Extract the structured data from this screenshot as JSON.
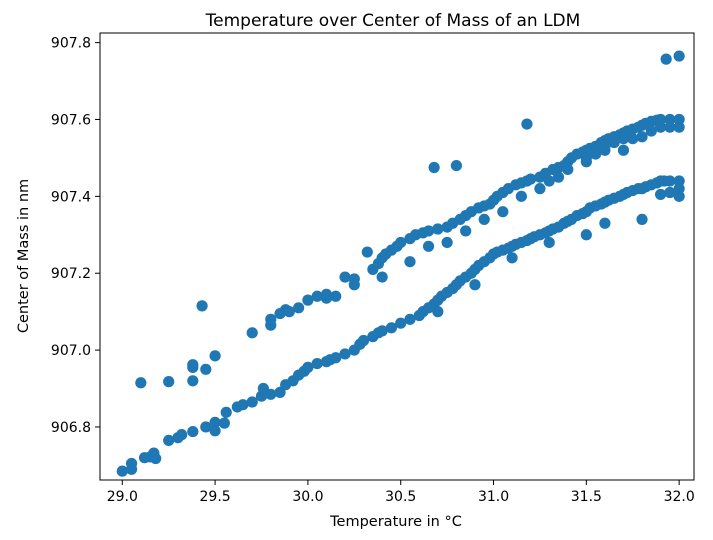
{
  "chart_data": {
    "type": "scatter",
    "title": "Temperature over Center of Mass of an LDM",
    "xlabel": "Temperature in °C",
    "ylabel": "Center of Mass in nm",
    "xlim": [
      28.88,
      32.08
    ],
    "ylim": [
      906.662,
      907.825
    ],
    "xticks": [
      29.0,
      29.5,
      30.0,
      30.5,
      31.0,
      31.5,
      32.0
    ],
    "xtick_labels": [
      "29.0",
      "29.5",
      "30.0",
      "30.5",
      "31.0",
      "31.5",
      "32.0"
    ],
    "yticks": [
      906.8,
      907.0,
      907.2,
      907.4,
      907.6,
      907.8
    ],
    "ytick_labels": [
      "906.8",
      "907.0",
      "907.2",
      "907.4",
      "907.6",
      "907.8"
    ],
    "grid": false,
    "color": "#1f77b4",
    "series": [
      {
        "points": [
          [
            29.0,
            906.685
          ],
          [
            29.05,
            906.69
          ],
          [
            29.05,
            906.705
          ],
          [
            29.12,
            906.72
          ],
          [
            29.15,
            906.722
          ],
          [
            29.17,
            906.732
          ],
          [
            29.18,
            906.718
          ],
          [
            29.25,
            906.765
          ],
          [
            29.3,
            906.772
          ],
          [
            29.32,
            906.78
          ],
          [
            29.38,
            906.788
          ],
          [
            29.45,
            906.8
          ],
          [
            29.5,
            906.79
          ],
          [
            29.5,
            906.812
          ],
          [
            29.55,
            906.81
          ],
          [
            29.56,
            906.838
          ],
          [
            29.62,
            906.852
          ],
          [
            29.65,
            906.858
          ],
          [
            29.7,
            906.865
          ],
          [
            29.75,
            906.88
          ],
          [
            29.76,
            906.9
          ],
          [
            29.8,
            906.885
          ],
          [
            29.85,
            906.89
          ],
          [
            29.88,
            906.91
          ],
          [
            29.92,
            906.92
          ],
          [
            29.95,
            906.935
          ],
          [
            29.98,
            906.945
          ],
          [
            30.0,
            906.955
          ],
          [
            30.05,
            906.965
          ],
          [
            30.1,
            906.97
          ],
          [
            30.12,
            906.975
          ],
          [
            30.15,
            906.98
          ],
          [
            30.2,
            906.99
          ],
          [
            30.25,
            907.0
          ],
          [
            30.28,
            907.015
          ],
          [
            30.3,
            907.025
          ],
          [
            30.35,
            907.035
          ],
          [
            30.38,
            907.045
          ],
          [
            30.4,
            907.05
          ],
          [
            30.45,
            907.058
          ],
          [
            30.5,
            907.07
          ],
          [
            30.55,
            907.08
          ],
          [
            30.6,
            907.09
          ],
          [
            30.62,
            907.1
          ],
          [
            30.65,
            907.11
          ],
          [
            30.68,
            907.12
          ],
          [
            30.7,
            907.13
          ],
          [
            30.72,
            907.14
          ],
          [
            30.75,
            907.15
          ],
          [
            30.78,
            907.16
          ],
          [
            30.8,
            907.17
          ],
          [
            30.82,
            907.18
          ],
          [
            30.85,
            907.19
          ],
          [
            30.88,
            907.2
          ],
          [
            30.9,
            907.21
          ],
          [
            30.92,
            907.22
          ],
          [
            30.95,
            907.23
          ],
          [
            30.98,
            907.24
          ],
          [
            31.0,
            907.25
          ],
          [
            31.02,
            907.255
          ],
          [
            31.05,
            907.26
          ],
          [
            31.08,
            907.265
          ],
          [
            31.1,
            907.27
          ],
          [
            31.12,
            907.275
          ],
          [
            31.15,
            907.28
          ],
          [
            31.18,
            907.285
          ],
          [
            31.2,
            907.29
          ],
          [
            31.22,
            907.295
          ],
          [
            31.25,
            907.3
          ],
          [
            31.28,
            907.305
          ],
          [
            31.3,
            907.31
          ],
          [
            31.32,
            907.315
          ],
          [
            31.35,
            907.32
          ],
          [
            31.38,
            907.33
          ],
          [
            31.4,
            907.335
          ],
          [
            31.42,
            907.34
          ],
          [
            31.45,
            907.35
          ],
          [
            31.48,
            907.355
          ],
          [
            31.5,
            907.36
          ],
          [
            31.52,
            907.37
          ],
          [
            31.55,
            907.375
          ],
          [
            31.58,
            907.38
          ],
          [
            31.6,
            907.385
          ],
          [
            31.62,
            907.39
          ],
          [
            31.65,
            907.395
          ],
          [
            31.68,
            907.4
          ],
          [
            31.7,
            907.405
          ],
          [
            31.72,
            907.41
          ],
          [
            31.75,
            907.415
          ],
          [
            31.78,
            907.42
          ],
          [
            31.8,
            907.42
          ],
          [
            31.82,
            907.425
          ],
          [
            31.85,
            907.43
          ],
          [
            31.88,
            907.435
          ],
          [
            31.9,
            907.44
          ],
          [
            31.92,
            907.44
          ],
          [
            31.95,
            907.44
          ],
          [
            32.0,
            907.44
          ],
          [
            32.0,
            907.42
          ],
          [
            32.0,
            907.4
          ],
          [
            31.8,
            907.34
          ],
          [
            31.9,
            907.405
          ],
          [
            31.95,
            907.41
          ],
          [
            31.5,
            907.3
          ],
          [
            31.6,
            907.33
          ],
          [
            30.7,
            907.1
          ],
          [
            30.9,
            907.17
          ],
          [
            31.1,
            907.24
          ],
          [
            31.3,
            907.28
          ]
        ]
      },
      {
        "points": [
          [
            29.1,
            906.915
          ],
          [
            29.25,
            906.918
          ],
          [
            29.38,
            906.92
          ],
          [
            29.38,
            906.955
          ],
          [
            29.38,
            906.962
          ],
          [
            29.45,
            906.95
          ],
          [
            29.5,
            906.985
          ],
          [
            29.43,
            907.115
          ],
          [
            29.7,
            907.045
          ],
          [
            29.8,
            907.065
          ],
          [
            29.8,
            907.08
          ],
          [
            29.85,
            907.095
          ],
          [
            29.88,
            907.105
          ],
          [
            29.95,
            907.11
          ],
          [
            30.0,
            907.13
          ],
          [
            30.05,
            907.14
          ],
          [
            30.1,
            907.135
          ],
          [
            30.15,
            907.14
          ],
          [
            30.2,
            907.19
          ],
          [
            30.25,
            907.17
          ],
          [
            30.25,
            907.185
          ],
          [
            30.32,
            907.255
          ],
          [
            30.35,
            907.21
          ],
          [
            30.38,
            907.225
          ],
          [
            30.4,
            907.24
          ],
          [
            30.42,
            907.25
          ],
          [
            30.45,
            907.26
          ],
          [
            30.48,
            907.27
          ],
          [
            30.5,
            907.28
          ],
          [
            30.55,
            907.29
          ],
          [
            30.58,
            907.3
          ],
          [
            30.62,
            907.305
          ],
          [
            30.65,
            907.31
          ],
          [
            30.7,
            907.315
          ],
          [
            30.75,
            907.32
          ],
          [
            30.78,
            907.33
          ],
          [
            30.82,
            907.34
          ],
          [
            30.85,
            907.35
          ],
          [
            30.88,
            907.36
          ],
          [
            30.92,
            907.37
          ],
          [
            30.95,
            907.375
          ],
          [
            30.98,
            907.38
          ],
          [
            31.0,
            907.39
          ],
          [
            31.02,
            907.4
          ],
          [
            31.05,
            907.41
          ],
          [
            31.08,
            907.42
          ],
          [
            31.12,
            907.43
          ],
          [
            31.15,
            907.435
          ],
          [
            31.18,
            907.44
          ],
          [
            31.2,
            907.445
          ],
          [
            31.25,
            907.45
          ],
          [
            31.28,
            907.46
          ],
          [
            31.32,
            907.47
          ],
          [
            31.35,
            907.475
          ],
          [
            31.38,
            907.48
          ],
          [
            31.4,
            907.49
          ],
          [
            31.42,
            907.5
          ],
          [
            31.45,
            907.51
          ],
          [
            31.48,
            907.515
          ],
          [
            31.5,
            907.52
          ],
          [
            31.52,
            907.525
          ],
          [
            31.55,
            907.53
          ],
          [
            31.58,
            907.54
          ],
          [
            31.6,
            907.545
          ],
          [
            31.62,
            907.55
          ],
          [
            31.65,
            907.555
          ],
          [
            31.68,
            907.56
          ],
          [
            31.7,
            907.565
          ],
          [
            31.72,
            907.57
          ],
          [
            31.75,
            907.575
          ],
          [
            31.78,
            907.58
          ],
          [
            31.8,
            907.585
          ],
          [
            31.82,
            907.59
          ],
          [
            31.85,
            907.595
          ],
          [
            31.88,
            907.598
          ],
          [
            31.9,
            907.6
          ],
          [
            31.95,
            907.6
          ],
          [
            32.0,
            907.6
          ],
          [
            32.0,
            907.58
          ],
          [
            31.95,
            907.58
          ],
          [
            31.8,
            907.555
          ],
          [
            31.7,
            907.52
          ],
          [
            31.65,
            907.54
          ],
          [
            31.6,
            907.52
          ],
          [
            31.5,
            907.49
          ],
          [
            31.4,
            907.47
          ],
          [
            30.68,
            907.475
          ],
          [
            30.8,
            907.48
          ],
          [
            31.18,
            907.588
          ],
          [
            31.93,
            907.757
          ],
          [
            32.0,
            907.765
          ],
          [
            30.1,
            907.145
          ],
          [
            29.9,
            907.1
          ],
          [
            30.4,
            907.19
          ],
          [
            30.55,
            907.23
          ],
          [
            30.65,
            907.27
          ],
          [
            30.75,
            907.28
          ],
          [
            30.85,
            907.31
          ],
          [
            30.95,
            907.34
          ],
          [
            31.05,
            907.36
          ],
          [
            31.15,
            907.4
          ],
          [
            31.25,
            907.42
          ],
          [
            31.3,
            907.44
          ],
          [
            31.35,
            907.45
          ],
          [
            31.5,
            907.5
          ],
          [
            31.55,
            907.51
          ],
          [
            31.6,
            907.53
          ],
          [
            31.7,
            907.55
          ],
          [
            31.75,
            907.55
          ],
          [
            31.85,
            907.57
          ],
          [
            31.9,
            907.58
          ]
        ]
      }
    ]
  }
}
